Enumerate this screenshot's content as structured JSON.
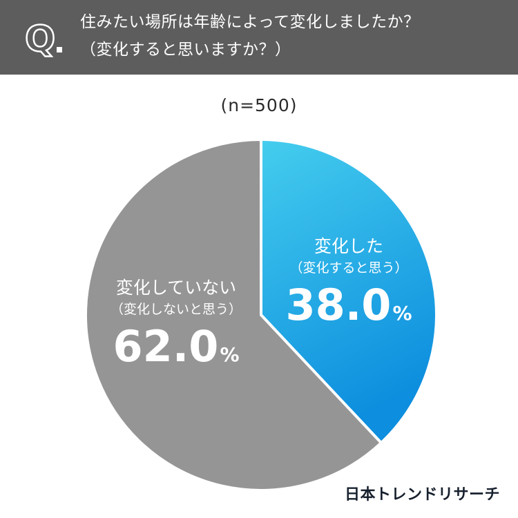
{
  "question": {
    "prefix": "Q",
    "line1": "住みたい場所は年齢によって変化しましたか？",
    "line2": "（変化すると思いますか？）"
  },
  "sample": "(n=500)",
  "chart_data": {
    "type": "pie",
    "title": "住みたい場所は年齢によって変化しましたか？（変化すると思いますか？）",
    "slices": [
      {
        "label": "変化した",
        "sublabel": "（変化すると思う）",
        "value": 38.0,
        "display": "38.0",
        "color": "#1ea7e6"
      },
      {
        "label": "変化していない",
        "sublabel": "（変化しないと思う）",
        "value": 62.0,
        "display": "62.0",
        "color": "#959595"
      }
    ],
    "unit": "%"
  },
  "brand": "日本トレンドリサーチ"
}
